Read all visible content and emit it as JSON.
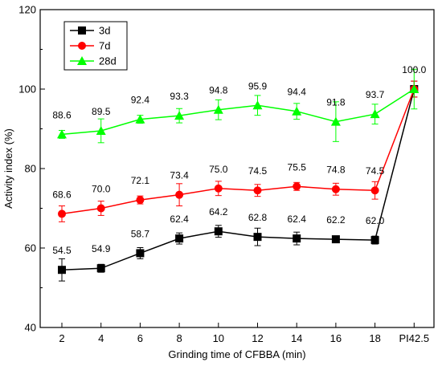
{
  "chart_data": {
    "type": "line",
    "xlabel": "Grinding time of CFBBA (min)",
    "ylabel": "Activity index (%)",
    "categories": [
      "2",
      "4",
      "6",
      "8",
      "10",
      "12",
      "14",
      "16",
      "18",
      "PI42.5"
    ],
    "ylim": [
      40,
      120
    ],
    "yticks": [
      40,
      60,
      80,
      100,
      120
    ],
    "grid": false,
    "legend_position": "top-left",
    "series": [
      {
        "name": "3d",
        "color": "#000000",
        "marker": "square",
        "values": [
          54.5,
          54.9,
          58.7,
          62.4,
          64.2,
          62.8,
          62.4,
          62.2,
          62.0,
          100.0
        ],
        "labels": [
          "54.5",
          "54.9",
          "58.7",
          "62.4",
          "64.2",
          "62.8",
          "62.4",
          "62.2",
          "62.0",
          ""
        ],
        "errors": [
          2.8,
          1.0,
          1.4,
          1.4,
          1.5,
          2.2,
          1.6,
          0.5,
          1.0,
          2.0
        ]
      },
      {
        "name": "7d",
        "color": "#ff0000",
        "marker": "circle",
        "values": [
          68.6,
          70.0,
          72.1,
          73.4,
          75.0,
          74.5,
          75.5,
          74.8,
          74.5,
          100.0
        ],
        "labels": [
          "68.6",
          "70.0",
          "72.1",
          "73.4",
          "75.0",
          "74.5",
          "75.5",
          "74.8",
          "74.5",
          ""
        ],
        "errors": [
          2.0,
          1.8,
          1.0,
          2.8,
          1.8,
          1.5,
          1.0,
          1.5,
          2.2,
          2.0
        ]
      },
      {
        "name": "28d",
        "color": "#00ff00",
        "marker": "triangle",
        "values": [
          88.6,
          89.5,
          92.4,
          93.3,
          94.8,
          95.9,
          94.4,
          91.8,
          93.7,
          100.0
        ],
        "labels": [
          "88.6",
          "89.5",
          "92.4",
          "93.3",
          "94.8",
          "95.9",
          "94.4",
          "91.8",
          "93.7",
          "100.0"
        ],
        "errors": [
          1.0,
          3.0,
          1.0,
          1.8,
          2.5,
          2.5,
          2.0,
          5.0,
          2.5,
          5.0
        ]
      }
    ]
  }
}
